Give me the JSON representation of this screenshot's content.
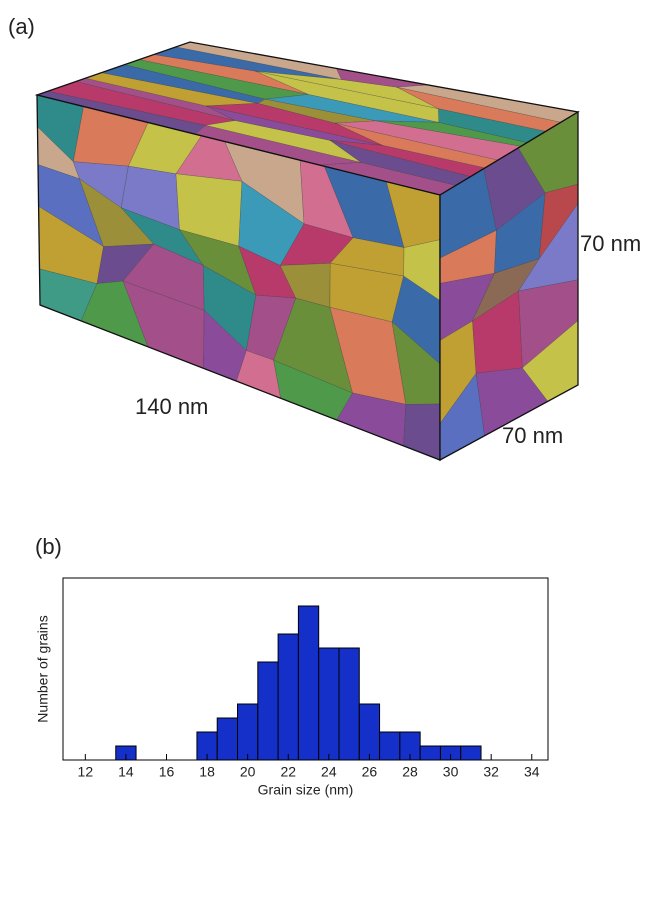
{
  "panel_a": {
    "label": "(a)",
    "length_label": "140 nm",
    "height_label": "70 nm",
    "depth_label": "70 nm"
  },
  "panel_b": {
    "label": "(b)"
  },
  "chart_data": {
    "type": "histogram",
    "xlabel": "Grain size (nm)",
    "ylabel": "Number of grains",
    "bins": [
      13.5,
      14.5,
      15.5,
      16.5,
      17.5,
      18.5,
      19.5,
      20.5,
      21.5,
      22.5,
      23.5,
      24.5,
      25.5,
      26.5,
      27.5,
      28.5,
      29.5,
      30.5,
      31.5
    ],
    "values": [
      1,
      0,
      0,
      0,
      2,
      3,
      4,
      7,
      9,
      11,
      8,
      8,
      4,
      2,
      2,
      1,
      1,
      1
    ],
    "color": "#1530c8",
    "xlim": [
      10.9,
      34.8
    ],
    "ylim": [
      0,
      13
    ],
    "xticks": [
      12,
      14,
      16,
      18,
      20,
      22,
      24,
      26,
      28,
      30,
      32,
      34
    ]
  }
}
